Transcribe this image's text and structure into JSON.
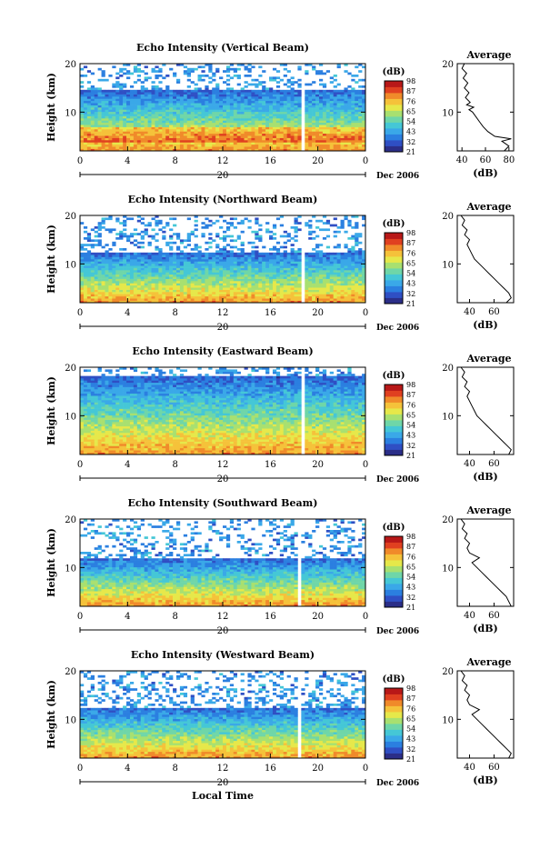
{
  "figure": {
    "x_axis_label": "Local Time",
    "date_label": "Dec 2006",
    "day_label": "20"
  },
  "colors": {
    "colormap": [
      "#2b2e88",
      "#2f4fc4",
      "#2b7fe0",
      "#3aa8e8",
      "#45c7d6",
      "#6fd6a8",
      "#a8e070",
      "#e6e84a",
      "#f5c23a",
      "#f08a2a",
      "#e04020",
      "#b81818"
    ],
    "line": "#000000",
    "gap": "#ffffff"
  },
  "chart_data": [
    {
      "type": "heatmap",
      "title": "Echo Intensity (Vertical Beam)",
      "ylabel": "Height (km)",
      "xlim": [
        0,
        24
      ],
      "ylim": [
        2,
        20
      ],
      "x_ticks": [
        "0",
        "4",
        "8",
        "12",
        "16",
        "20",
        "0"
      ],
      "y_ticks": [
        "10",
        "20"
      ],
      "colorbar": {
        "label": "(dB)",
        "ticks": [
          "98",
          "87",
          "76",
          "65",
          "54",
          "43",
          "32",
          "21"
        ],
        "range": [
          21,
          98
        ]
      },
      "top_height_km": 14.5,
      "gap_hour": 18.8,
      "profile": {
        "title": "Average",
        "xlabel": "(dB)",
        "x_ticks": [
          "40",
          "60",
          "80"
        ],
        "xlim": [
          36,
          84
        ],
        "height_km": [
          2.0,
          3.0,
          4.0,
          4.5,
          5.0,
          6.0,
          7.0,
          8.0,
          9.0,
          10.0,
          10.5,
          11.0,
          11.5,
          12.0,
          13.0,
          14.0,
          15.0,
          16.0,
          17.0,
          18.0,
          19.0,
          20.0
        ],
        "db": [
          76,
          80,
          74,
          82,
          68,
          62,
          58,
          55,
          52,
          49,
          46,
          50,
          44,
          47,
          43,
          46,
          42,
          45,
          41,
          44,
          40,
          42
        ]
      }
    },
    {
      "type": "heatmap",
      "title": "Echo Intensity (Northward Beam)",
      "ylabel": "Height (km)",
      "xlim": [
        0,
        24
      ],
      "ylim": [
        2,
        20
      ],
      "x_ticks": [
        "0",
        "4",
        "8",
        "12",
        "16",
        "20",
        "0"
      ],
      "y_ticks": [
        "10",
        "20"
      ],
      "colorbar": {
        "label": "(dB)",
        "ticks": [
          "98",
          "87",
          "76",
          "65",
          "54",
          "43",
          "32",
          "21"
        ],
        "range": [
          21,
          98
        ]
      },
      "top_height_km": 12.5,
      "gap_hour": 18.8,
      "profile": {
        "title": "Average",
        "xlabel": "(dB)",
        "x_ticks": [
          "40",
          "60"
        ],
        "xlim": [
          30,
          76
        ],
        "height_km": [
          2.0,
          3.0,
          4.0,
          5.0,
          6.0,
          7.0,
          8.0,
          9.0,
          10.0,
          11.0,
          12.0,
          13.0,
          14.0,
          15.0,
          16.0,
          17.0,
          18.0,
          19.0,
          20.0
        ],
        "db": [
          70,
          74,
          72,
          68,
          64,
          60,
          56,
          52,
          48,
          44,
          42,
          40,
          38,
          40,
          36,
          38,
          34,
          36,
          33
        ]
      }
    },
    {
      "type": "heatmap",
      "title": "Echo Intensity (Eastward Beam)",
      "ylabel": "Height (km)",
      "xlim": [
        0,
        24
      ],
      "ylim": [
        2,
        20
      ],
      "x_ticks": [
        "0",
        "4",
        "8",
        "12",
        "16",
        "20",
        "0"
      ],
      "y_ticks": [
        "10",
        "20"
      ],
      "colorbar": {
        "label": "(dB)",
        "ticks": [
          "98",
          "87",
          "76",
          "65",
          "54",
          "43",
          "32",
          "21"
        ],
        "range": [
          21,
          98
        ]
      },
      "top_height_km": 18.0,
      "gap_hour": 18.8,
      "profile": {
        "title": "Average",
        "xlabel": "(dB)",
        "x_ticks": [
          "40",
          "60"
        ],
        "xlim": [
          30,
          76
        ],
        "height_km": [
          2.0,
          3.0,
          4.0,
          5.0,
          6.0,
          7.0,
          8.0,
          9.0,
          10.0,
          11.0,
          12.0,
          13.0,
          14.0,
          15.0,
          16.0,
          17.0,
          18.0,
          19.0,
          20.0
        ],
        "db": [
          72,
          74,
          70,
          66,
          62,
          58,
          54,
          50,
          46,
          44,
          42,
          40,
          38,
          40,
          36,
          38,
          34,
          36,
          33
        ]
      }
    },
    {
      "type": "heatmap",
      "title": "Echo Intensity (Southward Beam)",
      "ylabel": "Height (km)",
      "xlim": [
        0,
        24
      ],
      "ylim": [
        2,
        20
      ],
      "x_ticks": [
        "0",
        "4",
        "8",
        "12",
        "16",
        "20",
        "0"
      ],
      "y_ticks": [
        "10",
        "20"
      ],
      "colorbar": {
        "label": "(dB)",
        "ticks": [
          "98",
          "87",
          "76",
          "65",
          "54",
          "43",
          "32",
          "21"
        ],
        "range": [
          21,
          98
        ]
      },
      "top_height_km": 12.0,
      "gap_hour": 18.5,
      "profile": {
        "title": "Average",
        "xlabel": "(dB)",
        "x_ticks": [
          "40",
          "60"
        ],
        "xlim": [
          30,
          76
        ],
        "height_km": [
          2.0,
          3.0,
          4.0,
          5.0,
          6.0,
          7.0,
          8.0,
          9.0,
          10.0,
          11.0,
          12.0,
          13.0,
          14.0,
          15.0,
          16.0,
          17.0,
          18.0,
          19.0,
          20.0
        ],
        "db": [
          74,
          72,
          70,
          66,
          62,
          58,
          54,
          50,
          46,
          42,
          48,
          40,
          38,
          40,
          36,
          38,
          34,
          36,
          33
        ]
      }
    },
    {
      "type": "heatmap",
      "title": "Echo Intensity (Westward Beam)",
      "ylabel": "Height (km)",
      "xlim": [
        0,
        24
      ],
      "ylim": [
        2,
        20
      ],
      "x_ticks": [
        "0",
        "4",
        "8",
        "12",
        "16",
        "20",
        "0"
      ],
      "y_ticks": [
        "10",
        "20"
      ],
      "colorbar": {
        "label": "(dB)",
        "ticks": [
          "98",
          "87",
          "76",
          "65",
          "54",
          "43",
          "32",
          "21"
        ],
        "range": [
          21,
          98
        ]
      },
      "top_height_km": 12.5,
      "gap_hour": 18.5,
      "profile": {
        "title": "Average",
        "xlabel": "(dB)",
        "x_ticks": [
          "40",
          "60"
        ],
        "xlim": [
          30,
          76
        ],
        "height_km": [
          2.0,
          3.0,
          4.0,
          5.0,
          6.0,
          7.0,
          8.0,
          9.0,
          10.0,
          11.0,
          12.0,
          13.0,
          14.0,
          15.0,
          16.0,
          17.0,
          18.0,
          19.0,
          20.0
        ],
        "db": [
          72,
          74,
          70,
          66,
          62,
          58,
          54,
          50,
          46,
          42,
          48,
          40,
          38,
          40,
          36,
          38,
          34,
          36,
          33
        ]
      }
    }
  ]
}
